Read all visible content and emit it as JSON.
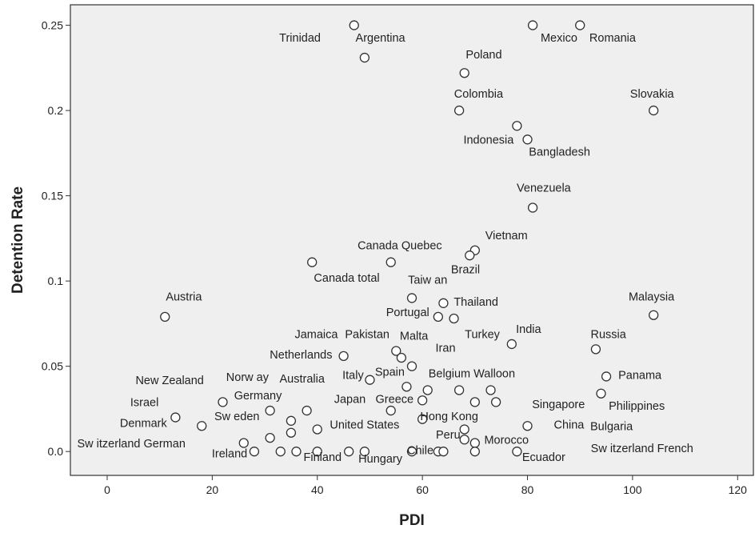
{
  "chart_data": {
    "type": "scatter",
    "xlabel": "PDI",
    "ylabel": "Detention Rate",
    "xlim": [
      -7,
      123
    ],
    "ylim": [
      -0.014,
      0.262
    ],
    "xticks": [
      0,
      20,
      40,
      60,
      80,
      100,
      120
    ],
    "yticks": [
      0.0,
      0.05,
      0.1,
      0.15,
      0.2,
      0.25
    ],
    "ytick_labels": [
      "0.0",
      "0.05",
      "0.1",
      "0.15",
      "0.2",
      "0.25"
    ],
    "grid": false,
    "colors": {
      "plot_bg": "#efefef",
      "marker_edge": "#333333",
      "marker_fill": "#ffffff",
      "frame": "#333333"
    },
    "points": [
      {
        "x": 47,
        "y": 0.25
      },
      {
        "x": 49,
        "y": 0.231
      },
      {
        "x": 81,
        "y": 0.25
      },
      {
        "x": 90,
        "y": 0.25
      },
      {
        "x": 68,
        "y": 0.222
      },
      {
        "x": 67,
        "y": 0.2
      },
      {
        "x": 104,
        "y": 0.2
      },
      {
        "x": 78,
        "y": 0.191
      },
      {
        "x": 80,
        "y": 0.183
      },
      {
        "x": 81,
        "y": 0.143
      },
      {
        "x": 70,
        "y": 0.118
      },
      {
        "x": 69,
        "y": 0.115
      },
      {
        "x": 39,
        "y": 0.111
      },
      {
        "x": 54,
        "y": 0.111
      },
      {
        "x": 58,
        "y": 0.09
      },
      {
        "x": 64,
        "y": 0.087
      },
      {
        "x": 104,
        "y": 0.08
      },
      {
        "x": 11,
        "y": 0.079
      },
      {
        "x": 63,
        "y": 0.079
      },
      {
        "x": 66,
        "y": 0.078
      },
      {
        "x": 77,
        "y": 0.063
      },
      {
        "x": 93,
        "y": 0.06
      },
      {
        "x": 55,
        "y": 0.059
      },
      {
        "x": 56,
        "y": 0.055
      },
      {
        "x": 45,
        "y": 0.056
      },
      {
        "x": 58,
        "y": 0.05
      },
      {
        "x": 95,
        "y": 0.044
      },
      {
        "x": 50,
        "y": 0.042
      },
      {
        "x": 57,
        "y": 0.038
      },
      {
        "x": 67,
        "y": 0.036
      },
      {
        "x": 73,
        "y": 0.036
      },
      {
        "x": 61,
        "y": 0.036
      },
      {
        "x": 94,
        "y": 0.034
      },
      {
        "x": 60,
        "y": 0.03
      },
      {
        "x": 70,
        "y": 0.029
      },
      {
        "x": 74,
        "y": 0.029
      },
      {
        "x": 22,
        "y": 0.029
      },
      {
        "x": 38,
        "y": 0.024
      },
      {
        "x": 31,
        "y": 0.024
      },
      {
        "x": 54,
        "y": 0.024
      },
      {
        "x": 13,
        "y": 0.02
      },
      {
        "x": 60,
        "y": 0.019
      },
      {
        "x": 35,
        "y": 0.018
      },
      {
        "x": 18,
        "y": 0.015
      },
      {
        "x": 80,
        "y": 0.015
      },
      {
        "x": 40,
        "y": 0.013
      },
      {
        "x": 68,
        "y": 0.013
      },
      {
        "x": 35,
        "y": 0.011
      },
      {
        "x": 31,
        "y": 0.008
      },
      {
        "x": 68,
        "y": 0.007
      },
      {
        "x": 26,
        "y": 0.005
      },
      {
        "x": 70,
        "y": 0.005
      },
      {
        "x": 28,
        "y": 0.0
      },
      {
        "x": 33,
        "y": 0.0
      },
      {
        "x": 36,
        "y": 0.0
      },
      {
        "x": 40,
        "y": 0.0
      },
      {
        "x": 46,
        "y": 0.0
      },
      {
        "x": 49,
        "y": 0.0
      },
      {
        "x": 58,
        "y": 0.0
      },
      {
        "x": 63,
        "y": 0.0
      },
      {
        "x": 64,
        "y": 0.0
      },
      {
        "x": 70,
        "y": 0.0
      },
      {
        "x": 78,
        "y": 0.0
      }
    ],
    "annotations": [
      {
        "text": "Trinidad",
        "x": 36.7,
        "y": 0.2405
      },
      {
        "text": "Argentina",
        "x": 52.0,
        "y": 0.2405
      },
      {
        "text": "Mexico",
        "x": 86.0,
        "y": 0.2405
      },
      {
        "text": "Romania",
        "x": 96.2,
        "y": 0.2405
      },
      {
        "text": "Poland",
        "x": 71.7,
        "y": 0.2305
      },
      {
        "text": "Colombia",
        "x": 70.7,
        "y": 0.2075
      },
      {
        "text": "Slovakia",
        "x": 103.7,
        "y": 0.2075
      },
      {
        "text": "Indonesia",
        "x": 72.6,
        "y": 0.1805
      },
      {
        "text": "Bangladesh",
        "x": 86.1,
        "y": 0.1735
      },
      {
        "text": "Venezuela",
        "x": 83.1,
        "y": 0.1525
      },
      {
        "text": "Vietnam",
        "x": 76.0,
        "y": 0.1245
      },
      {
        "text": "Canada Quebec",
        "x": 55.7,
        "y": 0.1185
      },
      {
        "text": "Brazil",
        "x": 68.2,
        "y": 0.1045
      },
      {
        "text": "Canada total",
        "x": 45.6,
        "y": 0.0995
      },
      {
        "text": "Taiw an",
        "x": 61.0,
        "y": 0.0985
      },
      {
        "text": "Thailand",
        "x": 70.2,
        "y": 0.0855
      },
      {
        "text": "Malaysia",
        "x": 103.6,
        "y": 0.0885
      },
      {
        "text": "Austria",
        "x": 14.6,
        "y": 0.0885
      },
      {
        "text": "Portugal",
        "x": 57.2,
        "y": 0.0795
      },
      {
        "text": "India",
        "x": 80.2,
        "y": 0.0695
      },
      {
        "text": "Jamaica",
        "x": 39.8,
        "y": 0.0665
      },
      {
        "text": "Pakistan",
        "x": 49.5,
        "y": 0.0665
      },
      {
        "text": "Malta",
        "x": 58.4,
        "y": 0.0655
      },
      {
        "text": "Turkey",
        "x": 71.4,
        "y": 0.0665
      },
      {
        "text": "Russia",
        "x": 95.4,
        "y": 0.0665
      },
      {
        "text": "Iran",
        "x": 64.4,
        "y": 0.0585
      },
      {
        "text": "Netherlands",
        "x": 36.9,
        "y": 0.0545
      },
      {
        "text": "Italy",
        "x": 46.8,
        "y": 0.0425
      },
      {
        "text": "Spain",
        "x": 53.8,
        "y": 0.0445
      },
      {
        "text": "Belgium Walloon",
        "x": 69.4,
        "y": 0.0435
      },
      {
        "text": "Panama",
        "x": 101.4,
        "y": 0.0425
      },
      {
        "text": "New  Zealand",
        "x": 11.9,
        "y": 0.0395
      },
      {
        "text": "Norw ay",
        "x": 26.7,
        "y": 0.0415
      },
      {
        "text": "Australia",
        "x": 37.1,
        "y": 0.0405
      },
      {
        "text": "Germany",
        "x": 28.7,
        "y": 0.0305
      },
      {
        "text": "Japan",
        "x": 46.2,
        "y": 0.0285
      },
      {
        "text": "Greece",
        "x": 54.7,
        "y": 0.0285
      },
      {
        "text": "Israel",
        "x": 7.1,
        "y": 0.0265
      },
      {
        "text": "Singapore",
        "x": 85.9,
        "y": 0.0255
      },
      {
        "text": "Philippines",
        "x": 100.8,
        "y": 0.0245
      },
      {
        "text": "Sw eden",
        "x": 24.7,
        "y": 0.0185
      },
      {
        "text": "Hong Kong",
        "x": 65.1,
        "y": 0.0185
      },
      {
        "text": "Denmark",
        "x": 6.9,
        "y": 0.0145
      },
      {
        "text": "United States",
        "x": 49.0,
        "y": 0.0135
      },
      {
        "text": "China",
        "x": 87.9,
        "y": 0.0135
      },
      {
        "text": "Bulgaria",
        "x": 96.0,
        "y": 0.0125
      },
      {
        "text": "Peru",
        "x": 64.9,
        "y": 0.0075
      },
      {
        "text": "Morocco",
        "x": 76.0,
        "y": 0.0045
      },
      {
        "text": "Sw itzerland German",
        "x": 4.6,
        "y": 0.0025
      },
      {
        "text": "Sw itzerland French",
        "x": 101.8,
        "y": -0.0005
      },
      {
        "text": "Ireland",
        "x": 23.3,
        "y": -0.0035
      },
      {
        "text": "Finland",
        "x": 41.0,
        "y": -0.0055
      },
      {
        "text": "Hungary",
        "x": 52.0,
        "y": -0.0065
      },
      {
        "text": "Chile",
        "x": 59.6,
        "y": -0.0015
      },
      {
        "text": "Ecuador",
        "x": 83.1,
        "y": -0.0055
      }
    ]
  }
}
